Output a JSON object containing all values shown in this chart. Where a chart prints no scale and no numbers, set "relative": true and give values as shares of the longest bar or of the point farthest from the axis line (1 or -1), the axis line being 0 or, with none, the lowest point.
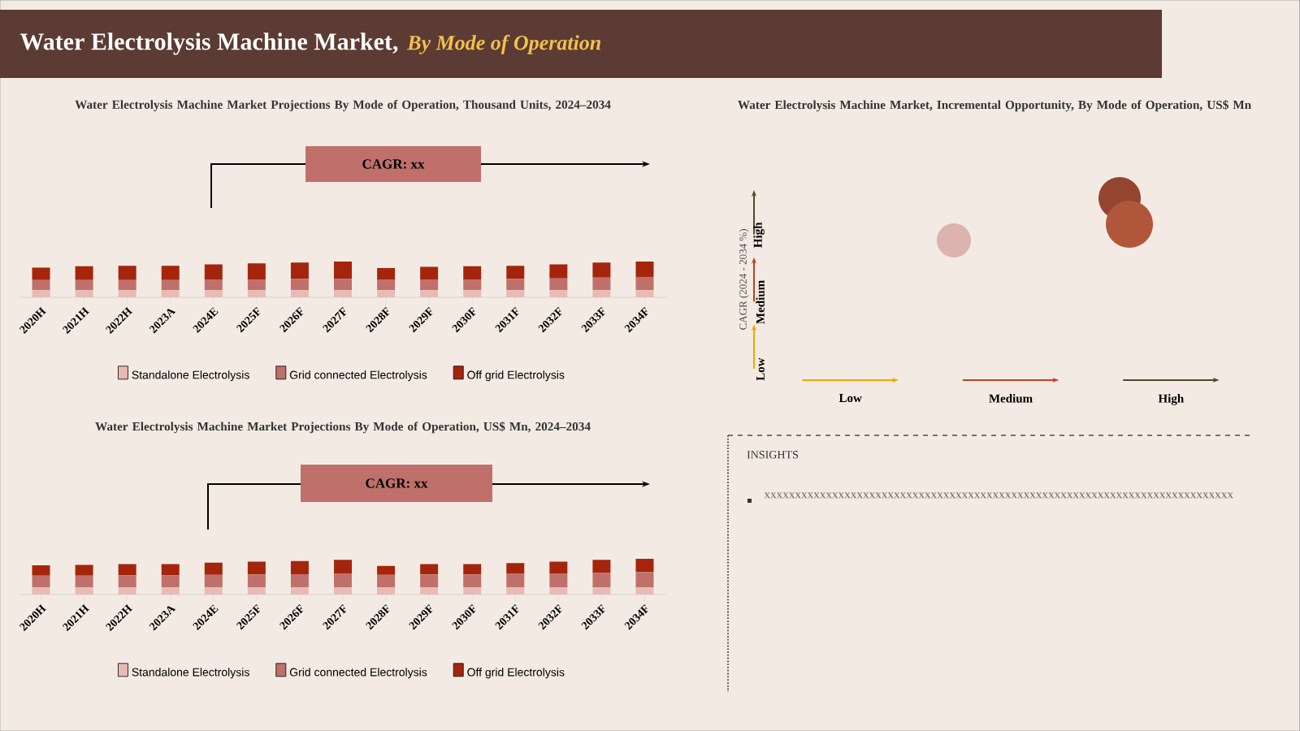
{
  "chart_data": [
    {
      "type": "other",
      "title": "Water Electrolysis Machine Market,",
      "subtitle": "By Mode of Operation"
    },
    {
      "type": "bar",
      "stacked": true,
      "relative": true,
      "legend": "bottom",
      "title": "Water Electrolysis Machine Market Projections By Mode of Operation, Thousand Units, 2024–2034",
      "annotations": [
        "CAGR: xx"
      ],
      "categories": [
        "2020H",
        "2021H",
        "2022H",
        "2023A",
        "2024E",
        "2025F",
        "2026F",
        "2027F",
        "2028F",
        "2029F",
        "2030F",
        "2031F",
        "2032F",
        "2033F",
        "2034F"
      ],
      "series": [
        {
          "name": "Standalone Electrolysis",
          "color": "#e8bab6",
          "values": [
            0.2,
            0.2,
            0.2,
            0.2,
            0.2,
            0.2,
            0.2,
            0.2,
            0.2,
            0.2,
            0.2,
            0.2,
            0.2,
            0.2,
            0.2
          ]
        },
        {
          "name": "Grid connected Electrolysis",
          "color": "#c0706b",
          "values": [
            0.28,
            0.28,
            0.28,
            0.28,
            0.3,
            0.3,
            0.32,
            0.32,
            0.3,
            0.3,
            0.3,
            0.32,
            0.33,
            0.35,
            0.37
          ]
        },
        {
          "name": "Off grid Electrolysis",
          "color": "#a5250c",
          "values": [
            0.35,
            0.39,
            0.4,
            0.4,
            0.42,
            0.45,
            0.45,
            0.48,
            0.32,
            0.35,
            0.37,
            0.36,
            0.39,
            0.42,
            0.43
          ]
        }
      ]
    },
    {
      "type": "bar",
      "stacked": true,
      "relative": true,
      "legend": "bottom",
      "title": "Water Electrolysis Machine Market Projections By Mode of Operation, US$ Mn, 2024–2034",
      "annotations": [
        "CAGR: xx"
      ],
      "categories": [
        "2020H",
        "2021H",
        "2022H",
        "2023A",
        "2024E",
        "2025F",
        "2026F",
        "2027F",
        "2028F",
        "2029F",
        "2030F",
        "2031F",
        "2032F",
        "2033F",
        "2034F"
      ],
      "series": [
        {
          "name": "Standalone Electrolysis",
          "color": "#e8bab6",
          "values": [
            0.2,
            0.2,
            0.2,
            0.2,
            0.2,
            0.2,
            0.2,
            0.2,
            0.2,
            0.2,
            0.2,
            0.2,
            0.2,
            0.2,
            0.2
          ]
        },
        {
          "name": "Grid connected Electrolysis",
          "color": "#c0706b",
          "values": [
            0.33,
            0.33,
            0.34,
            0.34,
            0.35,
            0.36,
            0.37,
            0.38,
            0.35,
            0.36,
            0.36,
            0.38,
            0.39,
            0.41,
            0.43
          ]
        },
        {
          "name": "Off grid Electrolysis",
          "color": "#a5250c",
          "values": [
            0.29,
            0.3,
            0.31,
            0.31,
            0.34,
            0.36,
            0.37,
            0.39,
            0.25,
            0.29,
            0.29,
            0.3,
            0.33,
            0.36,
            0.37
          ]
        }
      ]
    },
    {
      "type": "other",
      "title": "Water Electrolysis Machine Market, Incremental Opportunity, By Mode of Operation, US$ Mn",
      "ylabel": "CAGR (2024 - 2034 %)",
      "annotations": [
        "Low",
        "Medium",
        "High",
        "Low",
        "Medium",
        "High"
      ]
    },
    {
      "type": "other",
      "title": "INSIGHTS",
      "annotations": [
        "xxxxxxxxxxxxxxxxxxxxxxxxxxxxxxxxxxxxxxxxxxxxxxxxxxxxxxxxxxxxxxxxxxxxxxxxxxxx"
      ]
    }
  ]
}
